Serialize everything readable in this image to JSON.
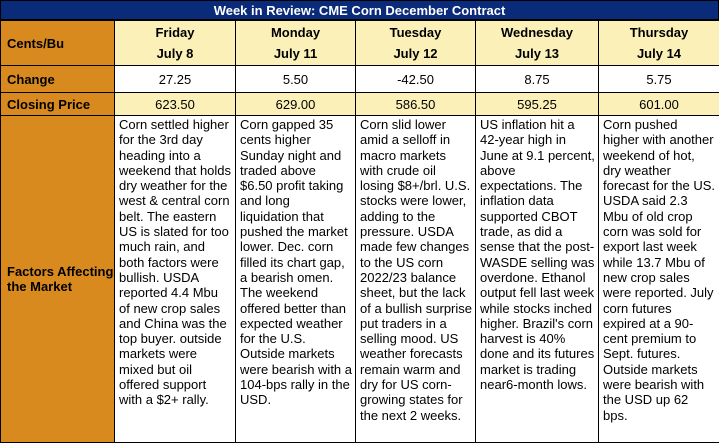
{
  "title": "Week in Review: CME Corn December Contract",
  "row_labels": {
    "units": "Cents/Bu",
    "change": "Change",
    "closing": "Closing Price",
    "factors": "Factors Affecting the Market"
  },
  "days": [
    {
      "day": "Friday",
      "date": "July 8",
      "change": "27.25",
      "close": "623.50",
      "factors": "Corn settled higher for the 3rd day heading into a weekend that holds dry weather for the west & central corn belt. The eastern US is slated for too much rain, and both factors were bullish. USDA reported 4.4 Mbu of new crop sales and China was the top buyer. outside markets were mixed but oil offered support with a $2+ rally."
    },
    {
      "day": "Monday",
      "date": "July 11",
      "change": "5.50",
      "close": "629.00",
      "factors": "Corn gapped 35 cents higher Sunday night and traded above $6.50 profit taking and long liquidation that pushed the market lower. Dec. corn filled its chart gap, a bearish omen. The weekend offered better than expected weather for the U.S. Outside markets were bearish with a 104-bps rally in the USD."
    },
    {
      "day": "Tuesday",
      "date": "July 12",
      "change": "-42.50",
      "close": "586.50",
      "factors": "Corn slid lower amid a selloff in macro markets with crude oil losing $8+/brl. U.S. stocks were lower, adding to the pressure. USDA made few changes to the US corn 2022/23 balance sheet, but the lack of a bullish surprise put traders in a selling mood. US weather forecasts remain warm and dry for US corn-growing states for the next 2 weeks."
    },
    {
      "day": "Wednesday",
      "date": "July 13",
      "change": "8.75",
      "close": "595.25",
      "factors": "US inflation hit a 42-year high in June at 9.1 percent, above expectations. The inflation data supported CBOT trade, as did a sense that the post-WASDE selling was overdone. Ethanol output fell last week while stocks inched higher. Brazil's corn harvest is 40% done and its futures market is trading near6-month lows."
    },
    {
      "day": "Thursday",
      "date": "July 14",
      "change": "5.75",
      "close": "601.00",
      "factors": "Corn pushed higher with another weekend of hot, dry weather forecast for the US. USDA said 2.3 Mbu of old crop corn was sold for export last week while 13.7 Mbu of new crop sales were reported. July corn futures expired at a 90-cent premium to Sept. futures. Outside markets were bearish with the USD up 62 bps."
    }
  ],
  "colors": {
    "title_bg": "#0a2a7a",
    "row_head_bg": "#d98a1f",
    "highlight_bg": "#fbf1b8"
  }
}
